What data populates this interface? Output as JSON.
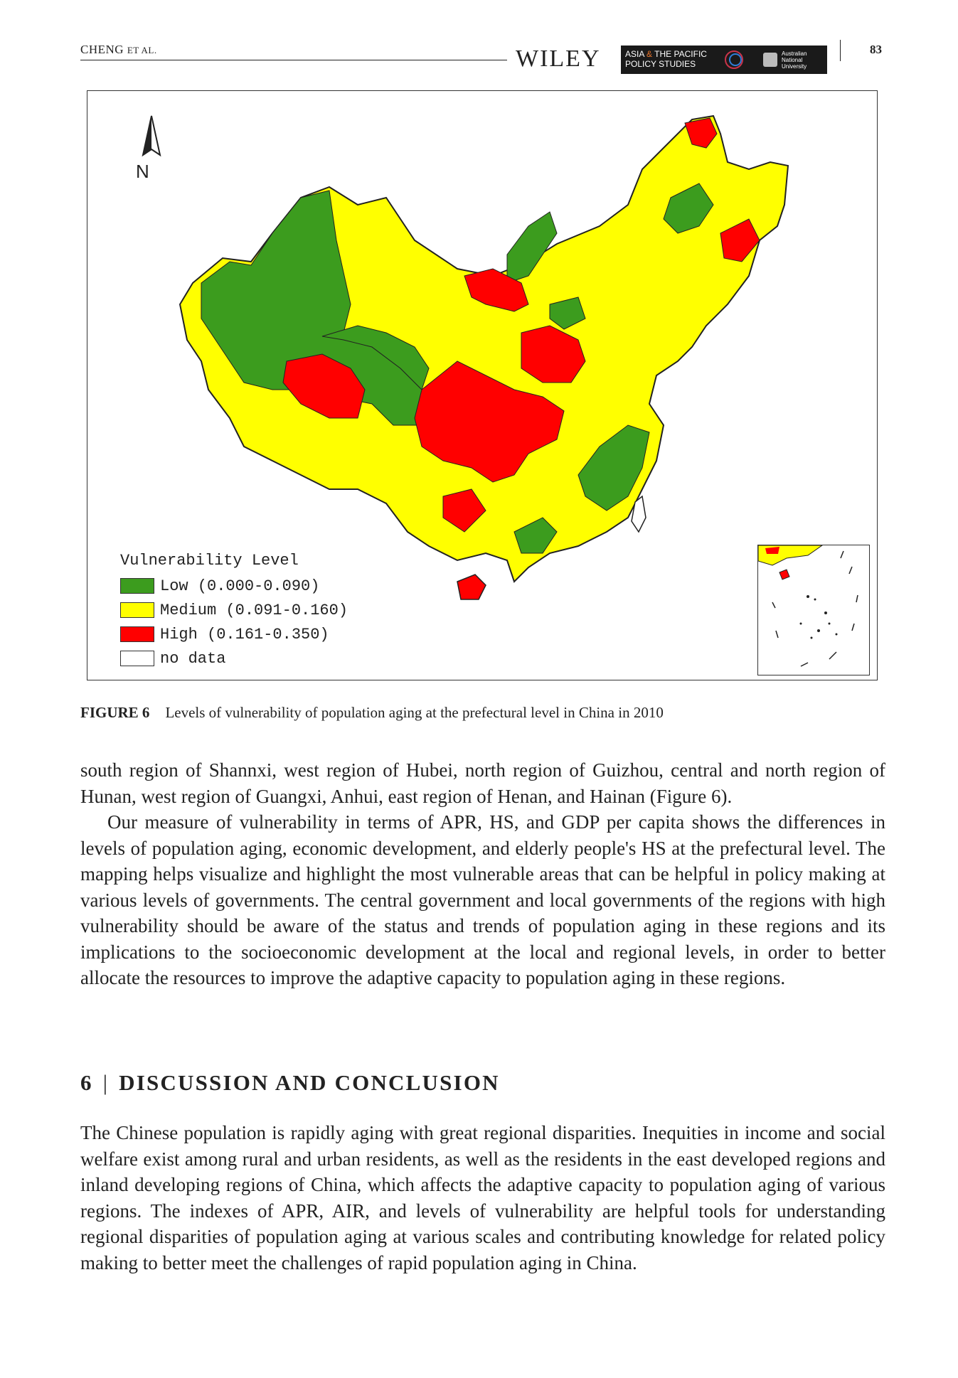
{
  "header": {
    "running_head_main": "CHENG",
    "running_head_sc": "ET AL.",
    "publisher": "WILEY",
    "journal_line1_a": "ASIA",
    "journal_line1_amp": "&",
    "journal_line1_b": "THE PACIFIC",
    "journal_line2": "POLICY STUDIES",
    "institution": "Australian National University",
    "page_number": "83"
  },
  "figure": {
    "north_label": "N",
    "legend": {
      "title": "Vulnerability Level",
      "items": [
        {
          "label": "Low (0.000-0.090)",
          "color": "#3c9c1e"
        },
        {
          "label": "Medium (0.091-0.160)",
          "color": "#ffff00"
        },
        {
          "label": "High (0.161-0.350)",
          "color": "#ff0000"
        },
        {
          "label": "no data",
          "color": "#ffffff"
        }
      ]
    },
    "caption_label": "FIGURE 6",
    "caption_text": "Levels of vulnerability of population aging at the prefectural level in China in 2010"
  },
  "body": {
    "p1": "south region of Shannxi, west region of Hubei, north region of Guizhou, central and north region of Hunan, west region of Guangxi, Anhui, east region of Henan, and Hainan (Figure 6).",
    "p2": "Our measure of vulnerability in terms of APR, HS, and GDP per capita shows the differences in levels of population aging, economic development, and elderly people's HS at the prefectural level. The mapping helps visualize and highlight the most vulnerable areas that can be helpful in policy making at various levels of governments. The central government and local governments of the regions with high vulnerability should be aware of the status and trends of population aging in these regions and its implications to the socioeconomic development at the local and regional levels, in order to better allocate the resources to improve the adaptive capacity to population aging in these regions.",
    "section_number": "6",
    "section_sep": "|",
    "section_title": "DISCUSSION AND CONCLUSION",
    "p3": "The Chinese population is rapidly aging with great regional disparities. Inequities in income and social welfare exist among rural and urban residents, as well as the residents in the east developed regions and inland developing regions of China, which affects the adaptive capacity to population aging of various regions. The indexes of APR, AIR, and levels of vulnerability are helpful tools for understanding regional disparities of population aging at various scales and contributing knowledge for related policy making to better meet the challenges of rapid population aging in China."
  }
}
